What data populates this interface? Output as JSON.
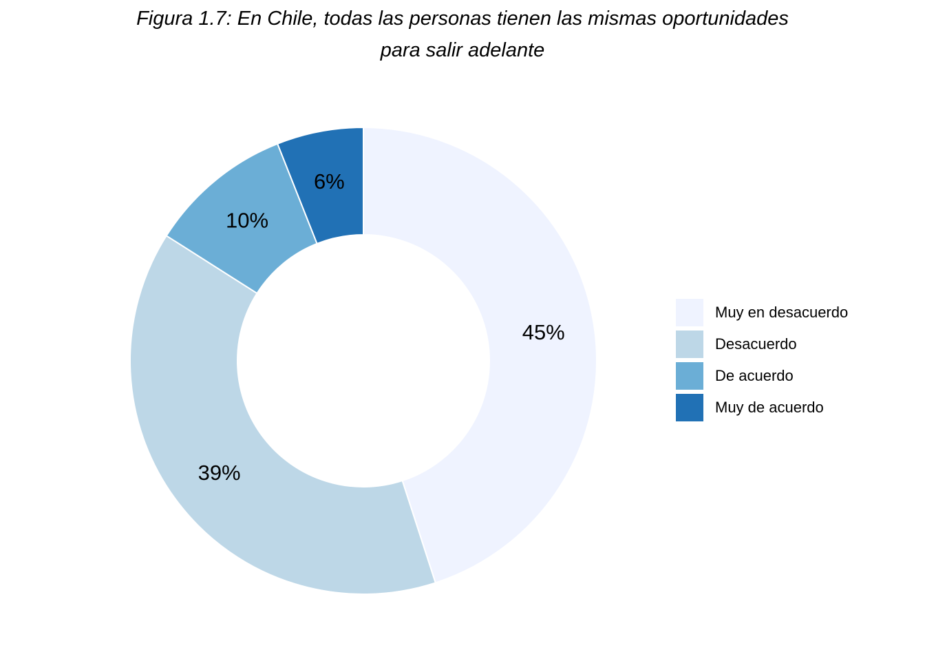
{
  "chart_data": {
    "type": "pie",
    "style": "donut",
    "title_lines": [
      "Figura 1.7: En Chile, todas las personas tienen las mismas oportunidades",
      "para salir adelante"
    ],
    "categories": [
      "Muy en desacuerdo",
      "Desacuerdo",
      "De acuerdo",
      "Muy de acuerdo"
    ],
    "values": [
      45,
      39,
      10,
      6
    ],
    "labels": [
      "45%",
      "39%",
      "10%",
      "6%"
    ],
    "colors": [
      "#eff3ff",
      "#bdd7e7",
      "#6baed6",
      "#2171b5"
    ],
    "legend_position": "right",
    "start": "top",
    "direction": "clockwise"
  }
}
